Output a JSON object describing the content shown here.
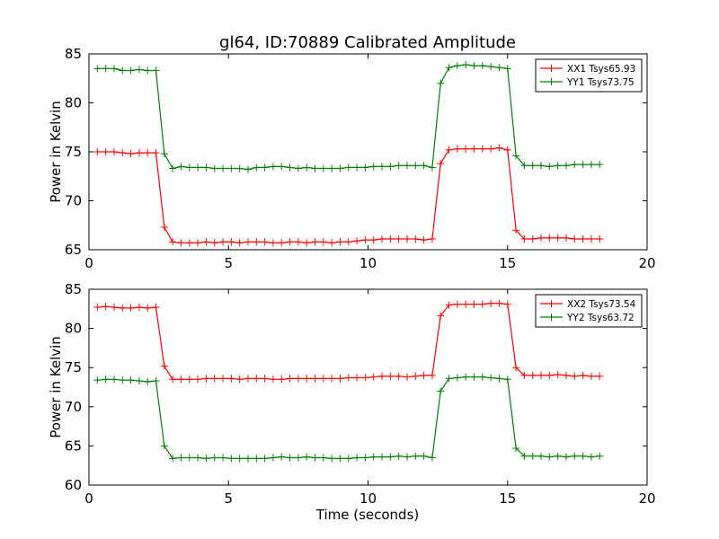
{
  "figure": {
    "title": "gl64, ID:70889 Calibrated Amplitude",
    "xlabel": "Time (seconds)"
  },
  "chart_data": [
    {
      "type": "line",
      "ylabel": "Power in Kelvin",
      "xlim": [
        0,
        20
      ],
      "ylim": [
        65,
        85
      ],
      "xticks": [
        0,
        5,
        10,
        15,
        20
      ],
      "yticks": [
        65,
        70,
        75,
        80,
        85
      ],
      "grid": false,
      "legend_position": "top-right",
      "x": [
        0.3,
        0.6,
        0.9,
        1.2,
        1.5,
        1.8,
        2.1,
        2.4,
        2.7,
        3.0,
        3.3,
        3.6,
        3.9,
        4.2,
        4.5,
        4.8,
        5.1,
        5.4,
        5.7,
        6.0,
        6.3,
        6.6,
        6.9,
        7.2,
        7.5,
        7.8,
        8.1,
        8.4,
        8.7,
        9.0,
        9.3,
        9.6,
        9.9,
        10.2,
        10.5,
        10.8,
        11.1,
        11.4,
        11.7,
        12.0,
        12.3,
        12.6,
        12.9,
        13.2,
        13.5,
        13.8,
        14.1,
        14.4,
        14.7,
        15.0,
        15.3,
        15.6,
        15.9,
        16.2,
        16.5,
        16.8,
        17.1,
        17.4,
        17.7,
        18.0,
        18.3
      ],
      "series": [
        {
          "name": "XX1 Tsys65.93",
          "color": "#ff0000",
          "values": [
            75.0,
            75.0,
            75.0,
            74.9,
            74.8,
            74.9,
            74.9,
            74.9,
            67.3,
            65.8,
            65.7,
            65.7,
            65.7,
            65.8,
            65.7,
            65.8,
            65.8,
            65.7,
            65.8,
            65.8,
            65.8,
            65.7,
            65.7,
            65.8,
            65.8,
            65.7,
            65.8,
            65.8,
            65.7,
            65.8,
            65.8,
            65.9,
            66.0,
            66.0,
            66.1,
            66.1,
            66.1,
            66.1,
            66.1,
            66.0,
            66.1,
            73.8,
            75.2,
            75.3,
            75.3,
            75.3,
            75.3,
            75.3,
            75.4,
            75.2,
            67.0,
            66.1,
            66.1,
            66.2,
            66.2,
            66.2,
            66.2,
            66.1,
            66.1,
            66.1,
            66.1
          ]
        },
        {
          "name": "YY1 Tsys73.75",
          "color": "#008000",
          "values": [
            83.5,
            83.5,
            83.5,
            83.3,
            83.3,
            83.4,
            83.3,
            83.3,
            74.8,
            73.3,
            73.5,
            73.4,
            73.4,
            73.4,
            73.3,
            73.3,
            73.3,
            73.3,
            73.2,
            73.4,
            73.4,
            73.5,
            73.5,
            73.4,
            73.3,
            73.4,
            73.3,
            73.3,
            73.3,
            73.3,
            73.4,
            73.4,
            73.4,
            73.5,
            73.5,
            73.5,
            73.6,
            73.6,
            73.6,
            73.6,
            73.4,
            82.0,
            83.6,
            83.8,
            83.9,
            83.8,
            83.8,
            83.7,
            83.6,
            83.5,
            74.6,
            73.6,
            73.6,
            73.6,
            73.5,
            73.6,
            73.6,
            73.7,
            73.7,
            73.7,
            73.7
          ]
        }
      ]
    },
    {
      "type": "line",
      "ylabel": "Power in Kelvin",
      "xlabel": "Time (seconds)",
      "xlim": [
        0,
        20
      ],
      "ylim": [
        60,
        85
      ],
      "xticks": [
        0,
        5,
        10,
        15,
        20
      ],
      "yticks": [
        60,
        65,
        70,
        75,
        80,
        85
      ],
      "grid": false,
      "legend_position": "top-right",
      "x": [
        0.3,
        0.6,
        0.9,
        1.2,
        1.5,
        1.8,
        2.1,
        2.4,
        2.7,
        3.0,
        3.3,
        3.6,
        3.9,
        4.2,
        4.5,
        4.8,
        5.1,
        5.4,
        5.7,
        6.0,
        6.3,
        6.6,
        6.9,
        7.2,
        7.5,
        7.8,
        8.1,
        8.4,
        8.7,
        9.0,
        9.3,
        9.6,
        9.9,
        10.2,
        10.5,
        10.8,
        11.1,
        11.4,
        11.7,
        12.0,
        12.3,
        12.6,
        12.9,
        13.2,
        13.5,
        13.8,
        14.1,
        14.4,
        14.7,
        15.0,
        15.3,
        15.6,
        15.9,
        16.2,
        16.5,
        16.8,
        17.1,
        17.4,
        17.7,
        18.0,
        18.3
      ],
      "series": [
        {
          "name": "XX2 Tsys73.54",
          "color": "#ff0000",
          "values": [
            82.7,
            82.8,
            82.7,
            82.6,
            82.6,
            82.7,
            82.6,
            82.7,
            75.2,
            73.5,
            73.5,
            73.5,
            73.5,
            73.6,
            73.6,
            73.6,
            73.6,
            73.5,
            73.6,
            73.6,
            73.6,
            73.5,
            73.5,
            73.6,
            73.6,
            73.6,
            73.6,
            73.6,
            73.6,
            73.6,
            73.7,
            73.7,
            73.7,
            73.8,
            73.9,
            73.9,
            73.9,
            73.8,
            73.9,
            74.0,
            74.0,
            81.6,
            83.0,
            83.1,
            83.1,
            83.1,
            83.1,
            83.2,
            83.2,
            83.1,
            75.0,
            74.0,
            74.0,
            74.0,
            74.0,
            74.1,
            74.0,
            73.9,
            74.0,
            73.9,
            73.9
          ]
        },
        {
          "name": "YY2 Tsys63.72",
          "color": "#008000",
          "values": [
            73.4,
            73.5,
            73.5,
            73.4,
            73.4,
            73.3,
            73.2,
            73.3,
            65.0,
            63.4,
            63.5,
            63.5,
            63.5,
            63.4,
            63.5,
            63.5,
            63.4,
            63.4,
            63.4,
            63.4,
            63.4,
            63.5,
            63.6,
            63.5,
            63.5,
            63.6,
            63.5,
            63.5,
            63.4,
            63.4,
            63.4,
            63.5,
            63.5,
            63.6,
            63.6,
            63.6,
            63.7,
            63.6,
            63.7,
            63.7,
            63.5,
            72.0,
            73.6,
            73.7,
            73.8,
            73.8,
            73.8,
            73.7,
            73.6,
            73.5,
            64.7,
            63.7,
            63.7,
            63.7,
            63.6,
            63.7,
            63.6,
            63.7,
            63.7,
            63.6,
            63.7
          ]
        }
      ]
    }
  ]
}
